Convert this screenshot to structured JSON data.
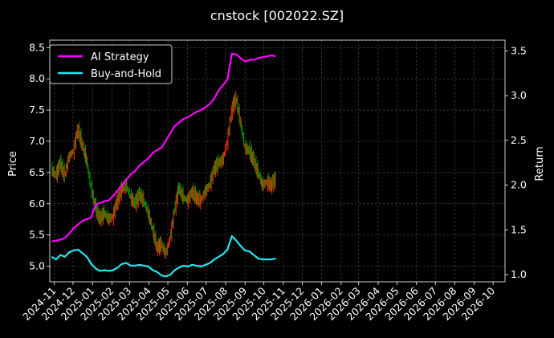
{
  "chart_data": {
    "type": "line",
    "title": "cnstock [002022.SZ]",
    "ylabel_left": "Price",
    "ylabel_right": "Return",
    "xlabel": "",
    "grid": true,
    "legend_position": "top-left",
    "background": "#000000",
    "x_ticks": [
      "2024-11",
      "2024-12",
      "2025-01",
      "2025-02",
      "2025-03",
      "2025-04",
      "2025-05",
      "2025-06",
      "2025-07",
      "2025-08",
      "2025-09",
      "2025-10",
      "2025-11",
      "2025-12",
      "2026-01",
      "2026-02",
      "2026-03",
      "2026-04",
      "2026-05",
      "2026-06",
      "2026-07",
      "2026-08",
      "2026-09",
      "2026-10"
    ],
    "x_range": [
      "2024-10-25",
      "2026-10-20"
    ],
    "y_left_range": [
      4.75,
      8.62
    ],
    "y_left_ticks": [
      "5.0",
      "5.5",
      "6.0",
      "6.5",
      "7.0",
      "7.5",
      "8.0",
      "8.5"
    ],
    "y_right_range": [
      0.92,
      3.62
    ],
    "y_right_ticks": [
      "1.0",
      "1.5",
      "2.0",
      "2.5",
      "3.0",
      "3.5"
    ],
    "candle_colors": {
      "up": "#ff2a00",
      "down": "#00a000"
    },
    "price_series": {
      "name": "",
      "points": [
        [
          "2024-10-28",
          6.55
        ],
        [
          "2024-11-04",
          6.45
        ],
        [
          "2024-11-11",
          6.65
        ],
        [
          "2024-11-18",
          6.45
        ],
        [
          "2024-11-25",
          6.75
        ],
        [
          "2024-12-02",
          6.85
        ],
        [
          "2024-12-09",
          7.2
        ],
        [
          "2024-12-16",
          6.95
        ],
        [
          "2024-12-23",
          6.7
        ],
        [
          "2024-12-30",
          6.25
        ],
        [
          "2025-01-06",
          5.95
        ],
        [
          "2025-01-13",
          5.75
        ],
        [
          "2025-01-20",
          5.85
        ],
        [
          "2025-01-27",
          5.75
        ],
        [
          "2025-02-03",
          5.8
        ],
        [
          "2025-02-10",
          6.05
        ],
        [
          "2025-02-17",
          6.25
        ],
        [
          "2025-02-24",
          6.3
        ],
        [
          "2025-03-03",
          6.1
        ],
        [
          "2025-03-10",
          6.0
        ],
        [
          "2025-03-17",
          6.15
        ],
        [
          "2025-03-24",
          6.05
        ],
        [
          "2025-03-31",
          5.85
        ],
        [
          "2025-04-07",
          5.6
        ],
        [
          "2025-04-14",
          5.3
        ],
        [
          "2025-04-21",
          5.35
        ],
        [
          "2025-04-28",
          5.2
        ],
        [
          "2025-05-05",
          5.45
        ],
        [
          "2025-05-12",
          5.9
        ],
        [
          "2025-05-19",
          6.25
        ],
        [
          "2025-05-26",
          6.1
        ],
        [
          "2025-06-02",
          6.05
        ],
        [
          "2025-06-09",
          6.2
        ],
        [
          "2025-06-16",
          6.1
        ],
        [
          "2025-06-23",
          6.05
        ],
        [
          "2025-06-30",
          6.2
        ],
        [
          "2025-07-07",
          6.3
        ],
        [
          "2025-07-14",
          6.55
        ],
        [
          "2025-07-21",
          6.65
        ],
        [
          "2025-07-28",
          6.7
        ],
        [
          "2025-08-04",
          7.0
        ],
        [
          "2025-08-11",
          7.5
        ],
        [
          "2025-08-18",
          7.7
        ],
        [
          "2025-08-25",
          7.3
        ],
        [
          "2025-09-01",
          6.9
        ],
        [
          "2025-09-08",
          6.85
        ],
        [
          "2025-09-15",
          6.7
        ],
        [
          "2025-09-22",
          6.5
        ],
        [
          "2025-09-29",
          6.3
        ],
        [
          "2025-10-06",
          6.35
        ],
        [
          "2025-10-13",
          6.3
        ],
        [
          "2025-10-20",
          6.4
        ]
      ]
    },
    "series": [
      {
        "name": "AI Strategy",
        "color": "#ff00ff",
        "points": [
          [
            "2024-10-28",
            1.37
          ],
          [
            "2024-11-04",
            1.38
          ],
          [
            "2024-11-11",
            1.39
          ],
          [
            "2024-11-18",
            1.41
          ],
          [
            "2024-11-25",
            1.46
          ],
          [
            "2024-12-02",
            1.52
          ],
          [
            "2024-12-09",
            1.56
          ],
          [
            "2024-12-16",
            1.6
          ],
          [
            "2024-12-23",
            1.62
          ],
          [
            "2024-12-30",
            1.64
          ],
          [
            "2025-01-06",
            1.78
          ],
          [
            "2025-01-13",
            1.8
          ],
          [
            "2025-01-20",
            1.82
          ],
          [
            "2025-01-27",
            1.83
          ],
          [
            "2025-02-03",
            1.88
          ],
          [
            "2025-02-10",
            1.94
          ],
          [
            "2025-02-17",
            2.0
          ],
          [
            "2025-02-24",
            2.06
          ],
          [
            "2025-03-03",
            2.12
          ],
          [
            "2025-03-10",
            2.16
          ],
          [
            "2025-03-17",
            2.22
          ],
          [
            "2025-03-24",
            2.26
          ],
          [
            "2025-03-31",
            2.3
          ],
          [
            "2025-04-07",
            2.36
          ],
          [
            "2025-04-14",
            2.39
          ],
          [
            "2025-04-21",
            2.42
          ],
          [
            "2025-04-28",
            2.5
          ],
          [
            "2025-05-05",
            2.58
          ],
          [
            "2025-05-12",
            2.66
          ],
          [
            "2025-05-19",
            2.7
          ],
          [
            "2025-05-26",
            2.74
          ],
          [
            "2025-06-02",
            2.76
          ],
          [
            "2025-06-09",
            2.79
          ],
          [
            "2025-06-16",
            2.82
          ],
          [
            "2025-06-23",
            2.84
          ],
          [
            "2025-06-30",
            2.87
          ],
          [
            "2025-07-07",
            2.91
          ],
          [
            "2025-07-14",
            2.97
          ],
          [
            "2025-07-21",
            3.06
          ],
          [
            "2025-07-28",
            3.12
          ],
          [
            "2025-08-04",
            3.18
          ],
          [
            "2025-08-11",
            3.47
          ],
          [
            "2025-08-18",
            3.46
          ],
          [
            "2025-08-25",
            3.42
          ],
          [
            "2025-09-01",
            3.38
          ],
          [
            "2025-09-08",
            3.4
          ],
          [
            "2025-09-15",
            3.4
          ],
          [
            "2025-09-22",
            3.42
          ],
          [
            "2025-09-29",
            3.43
          ],
          [
            "2025-10-06",
            3.44
          ],
          [
            "2025-10-13",
            3.45
          ],
          [
            "2025-10-20",
            3.44
          ]
        ]
      },
      {
        "name": "Buy-and-Hold",
        "color": "#22e6f0",
        "points": [
          [
            "2024-10-28",
            1.2
          ],
          [
            "2024-11-04",
            1.17
          ],
          [
            "2024-11-11",
            1.22
          ],
          [
            "2024-11-18",
            1.2
          ],
          [
            "2024-11-25",
            1.25
          ],
          [
            "2024-12-02",
            1.27
          ],
          [
            "2024-12-09",
            1.28
          ],
          [
            "2024-12-16",
            1.24
          ],
          [
            "2024-12-23",
            1.2
          ],
          [
            "2024-12-30",
            1.12
          ],
          [
            "2025-01-06",
            1.07
          ],
          [
            "2025-01-13",
            1.04
          ],
          [
            "2025-01-20",
            1.05
          ],
          [
            "2025-01-27",
            1.04
          ],
          [
            "2025-02-03",
            1.05
          ],
          [
            "2025-02-10",
            1.08
          ],
          [
            "2025-02-17",
            1.12
          ],
          [
            "2025-02-24",
            1.13
          ],
          [
            "2025-03-03",
            1.1
          ],
          [
            "2025-03-10",
            1.1
          ],
          [
            "2025-03-17",
            1.11
          ],
          [
            "2025-03-24",
            1.1
          ],
          [
            "2025-03-31",
            1.09
          ],
          [
            "2025-04-07",
            1.05
          ],
          [
            "2025-04-14",
            1.03
          ],
          [
            "2025-04-21",
            0.99
          ],
          [
            "2025-04-28",
            0.98
          ],
          [
            "2025-05-05",
            1.0
          ],
          [
            "2025-05-12",
            1.05
          ],
          [
            "2025-05-19",
            1.08
          ],
          [
            "2025-05-26",
            1.1
          ],
          [
            "2025-06-02",
            1.09
          ],
          [
            "2025-06-09",
            1.11
          ],
          [
            "2025-06-16",
            1.1
          ],
          [
            "2025-06-23",
            1.09
          ],
          [
            "2025-06-30",
            1.11
          ],
          [
            "2025-07-07",
            1.13
          ],
          [
            "2025-07-14",
            1.17
          ],
          [
            "2025-07-21",
            1.2
          ],
          [
            "2025-07-28",
            1.23
          ],
          [
            "2025-08-04",
            1.28
          ],
          [
            "2025-08-11",
            1.43
          ],
          [
            "2025-08-18",
            1.38
          ],
          [
            "2025-08-25",
            1.32
          ],
          [
            "2025-09-01",
            1.27
          ],
          [
            "2025-09-08",
            1.26
          ],
          [
            "2025-09-15",
            1.22
          ],
          [
            "2025-09-22",
            1.18
          ],
          [
            "2025-09-29",
            1.17
          ],
          [
            "2025-10-06",
            1.17
          ],
          [
            "2025-10-13",
            1.17
          ],
          [
            "2025-10-20",
            1.18
          ]
        ]
      }
    ]
  }
}
